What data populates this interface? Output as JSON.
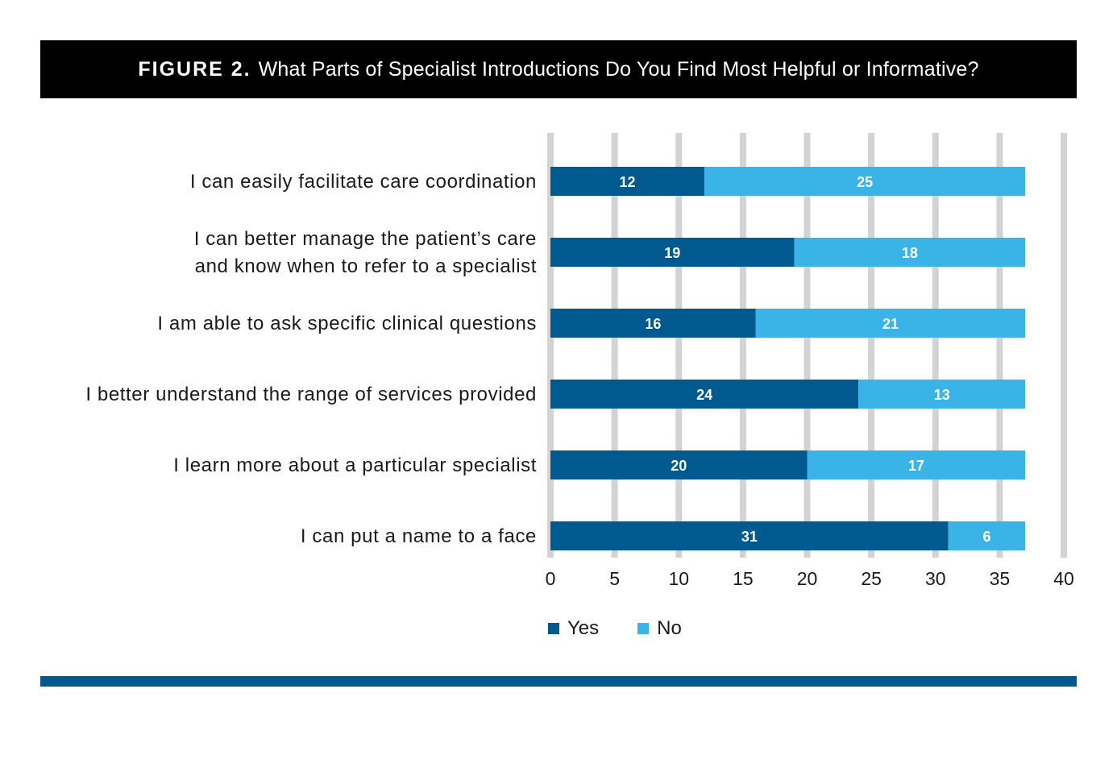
{
  "header": {
    "figure_label": "FIGURE 2.",
    "title": "What Parts of Specialist Introductions Do You Find Most Helpful or Informative?"
  },
  "colors": {
    "yes": "#005a8f",
    "no": "#3ab4e7",
    "grid": "#d3d3d3",
    "header_bg": "#000000",
    "footer": "#005a8f"
  },
  "chart_data": {
    "type": "bar",
    "orientation": "horizontal",
    "stacked": true,
    "title": "What Parts of Specialist Introductions Do You Find Most Helpful or Informative?",
    "categories": [
      [
        "I can easily facilitate care coordination"
      ],
      [
        "I can better manage the patient’s care",
        "and know when to refer to a specialist"
      ],
      [
        "I am able to ask specific clinical questions"
      ],
      [
        "I better understand the range of services provided"
      ],
      [
        "I learn more about a particular specialist"
      ],
      [
        "I can put a name to a face"
      ]
    ],
    "series": [
      {
        "name": "Yes",
        "values": [
          12,
          19,
          16,
          24,
          20,
          31
        ]
      },
      {
        "name": "No",
        "values": [
          25,
          18,
          21,
          13,
          17,
          6
        ]
      }
    ],
    "xlim": [
      0,
      40
    ],
    "xticks": [
      0,
      5,
      10,
      15,
      20,
      25,
      30,
      35,
      40
    ],
    "grid": true,
    "legend_position": "bottom"
  },
  "legend": {
    "yes_label": "Yes",
    "no_label": "No"
  }
}
